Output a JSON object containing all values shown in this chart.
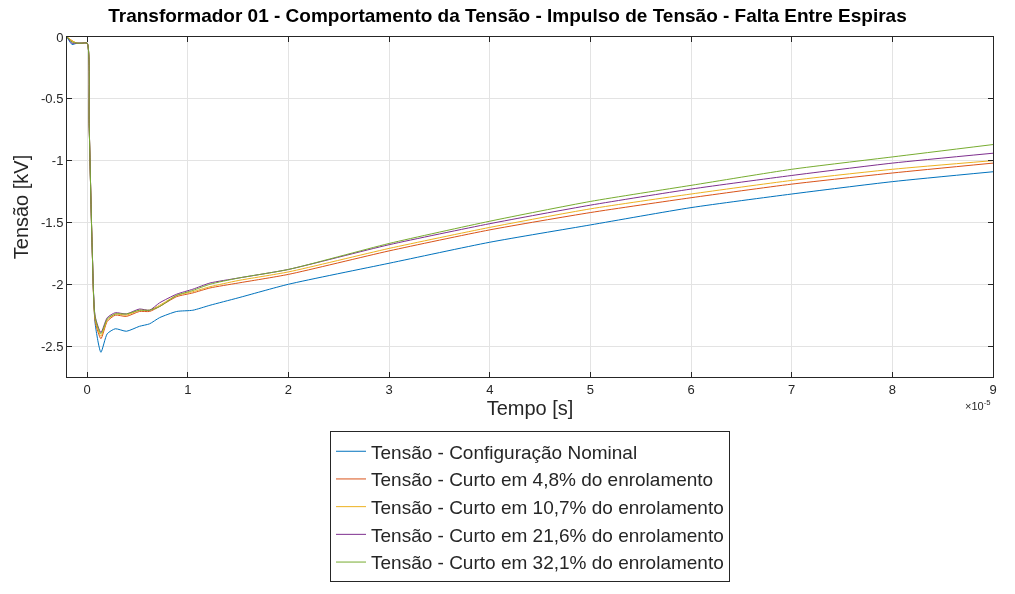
{
  "chart_data": {
    "type": "line",
    "title": "Transformador 01 - Comportamento da Tensão - Impulso de Tensão - Falta Entre Espiras",
    "xlabel": "Tempo [s]",
    "ylabel": "Tensão [kV]",
    "annotations": [
      "×10$^{-5}$"
    ],
    "x": [
      -0.2,
      -0.15,
      -0.1,
      -0.05,
      0,
      0.02,
      0.05,
      0.08,
      0.137,
      0.2,
      0.28,
      0.39,
      0.52,
      0.62,
      0.72,
      0.89,
      1.05,
      1.22,
      1.5,
      2,
      3,
      4,
      5,
      6,
      7,
      8,
      9
    ],
    "series": [
      {
        "name": "Tensão - Configuração Nominal",
        "color": "#0072bd",
        "values": [
          0,
          -0.06,
          -0.05,
          -0.05,
          -0.05,
          -0.7,
          -1.7,
          -2.32,
          -2.55,
          -2.4,
          -2.36,
          -2.38,
          -2.34,
          -2.32,
          -2.27,
          -2.22,
          -2.21,
          -2.17,
          -2.11,
          -2.0,
          -1.83,
          -1.66,
          -1.52,
          -1.38,
          -1.27,
          -1.17,
          -1.09
        ]
      },
      {
        "name": "Tensão - Curto em 4,8% do enrolamento",
        "color": "#d95319",
        "values": [
          0,
          -0.03,
          -0.05,
          -0.05,
          -0.05,
          -0.7,
          -1.7,
          -2.3,
          -2.44,
          -2.3,
          -2.25,
          -2.26,
          -2.22,
          -2.22,
          -2.18,
          -2.1,
          -2.07,
          -2.03,
          -1.99,
          -1.92,
          -1.73,
          -1.56,
          -1.42,
          -1.3,
          -1.19,
          -1.1,
          -1.02
        ]
      },
      {
        "name": "Tensão - Curto em 10,7% do enrolamento",
        "color": "#edb120",
        "values": [
          0,
          -0.03,
          -0.05,
          -0.05,
          -0.05,
          -0.7,
          -1.7,
          -2.28,
          -2.42,
          -2.29,
          -2.24,
          -2.25,
          -2.21,
          -2.21,
          -2.17,
          -2.09,
          -2.06,
          -2.02,
          -1.97,
          -1.9,
          -1.71,
          -1.54,
          -1.39,
          -1.27,
          -1.16,
          -1.07,
          -1.0
        ]
      },
      {
        "name": "Tensão - Curto em 21,6% do enrolamento",
        "color": "#7e2f8e",
        "values": [
          0,
          -0.05,
          -0.05,
          -0.05,
          -0.05,
          -0.7,
          -1.7,
          -2.26,
          -2.39,
          -2.27,
          -2.23,
          -2.24,
          -2.2,
          -2.21,
          -2.15,
          -2.08,
          -2.04,
          -1.99,
          -1.95,
          -1.88,
          -1.68,
          -1.51,
          -1.36,
          -1.23,
          -1.12,
          -1.02,
          -0.94
        ]
      },
      {
        "name": "Tensão - Curto em 32,1% do enrolamento",
        "color": "#77ac30",
        "values": [
          0,
          -0.04,
          -0.05,
          -0.05,
          -0.05,
          -0.7,
          -1.7,
          -2.27,
          -2.4,
          -2.28,
          -2.24,
          -2.24,
          -2.21,
          -2.21,
          -2.18,
          -2.09,
          -2.05,
          -2.0,
          -1.95,
          -1.88,
          -1.67,
          -1.49,
          -1.33,
          -1.2,
          -1.07,
          -0.97,
          -0.87
        ]
      }
    ],
    "xlim": [
      -0.2,
      9
    ],
    "xticks": [
      0,
      1,
      2,
      3,
      4,
      5,
      6,
      7,
      8,
      9
    ],
    "ylim": [
      -2.75,
      0
    ],
    "yticks": [
      -2.5,
      -2,
      -1.5,
      -1,
      -0.5,
      0
    ],
    "grid": true,
    "legend": "bottom",
    "marker": "none",
    "line_style": "solid"
  }
}
